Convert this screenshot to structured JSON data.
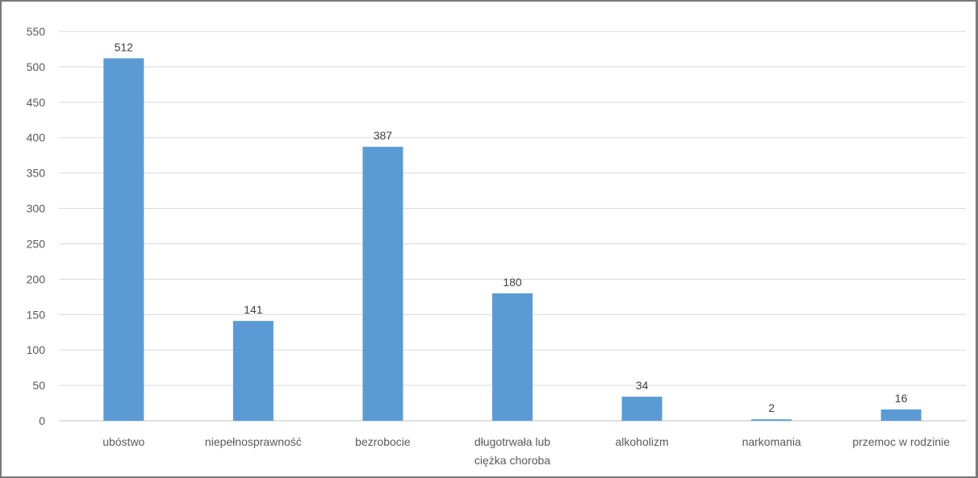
{
  "chart_data": {
    "type": "bar",
    "categories": [
      [
        "ubóstwo"
      ],
      [
        "niepełnosprawność"
      ],
      [
        "bezrobocie"
      ],
      [
        "długotrwała lub",
        "ciężka choroba"
      ],
      [
        "alkoholizm"
      ],
      [
        "narkomania"
      ],
      [
        "przemoc w rodzinie"
      ]
    ],
    "values": [
      512,
      141,
      387,
      180,
      34,
      2,
      16
    ],
    "ylim": [
      0,
      550
    ],
    "yticks": [
      0,
      50,
      100,
      150,
      200,
      250,
      300,
      350,
      400,
      450,
      500,
      550
    ],
    "grid": true,
    "data_labels": true,
    "bar_color": "#5b9bd5",
    "grid_color": "#d9d9d9"
  }
}
